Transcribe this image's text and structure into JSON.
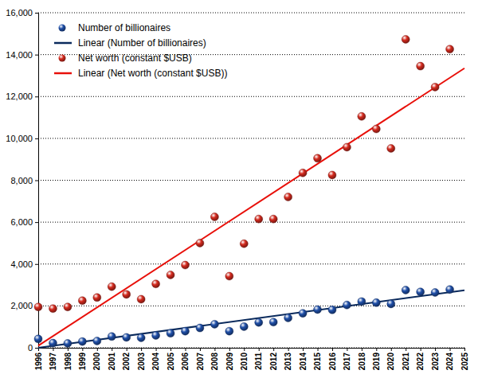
{
  "chart_data": {
    "type": "scatter",
    "x": [
      1996,
      1997,
      1998,
      1999,
      2000,
      2001,
      2002,
      2003,
      2004,
      2005,
      2006,
      2007,
      2008,
      2009,
      2010,
      2011,
      2012,
      2013,
      2014,
      2015,
      2016,
      2017,
      2018,
      2019,
      2020,
      2021,
      2022,
      2023,
      2024
    ],
    "series": [
      {
        "name": "Number of billionaires",
        "type": "scatter",
        "marker": "circle",
        "color": "#1f4fa8",
        "values": [
          423,
          224,
          209,
          298,
          322,
          538,
          497,
          476,
          587,
          691,
          793,
          946,
          1125,
          793,
          1011,
          1210,
          1226,
          1426,
          1645,
          1826,
          1810,
          2043,
          2208,
          2153,
          2095,
          2755,
          2668,
          2640,
          2781
        ]
      },
      {
        "name": "Linear (Number of billionaires)",
        "type": "line",
        "line_style": "solid",
        "color": "#0a2a5c",
        "x": [
          1996,
          2025
        ],
        "values": [
          0,
          2750
        ]
      },
      {
        "name": "Net worth (constant $USB)",
        "type": "scatter",
        "marker": "circle",
        "color": "#d42a1e",
        "values": [
          1950,
          1870,
          1950,
          2250,
          2400,
          2920,
          2550,
          2320,
          3050,
          3480,
          3950,
          5000,
          6250,
          3420,
          4970,
          6150,
          6150,
          7200,
          8350,
          9050,
          8250,
          9580,
          11050,
          10450,
          9520,
          14730,
          13450,
          12450,
          14260
        ]
      },
      {
        "name": "Linear (Net worth (constant $USB))",
        "type": "line",
        "line_style": "solid",
        "color": "#e8100a",
        "x": [
          1996,
          2025
        ],
        "values": [
          100,
          13350
        ]
      }
    ],
    "xlim": [
      1996,
      2025
    ],
    "xticks": [
      1996,
      1997,
      1998,
      1999,
      2000,
      2001,
      2002,
      2003,
      2004,
      2005,
      2006,
      2007,
      2008,
      2009,
      2010,
      2011,
      2012,
      2013,
      2014,
      2015,
      2016,
      2017,
      2018,
      2019,
      2020,
      2021,
      2022,
      2023,
      2024,
      2025
    ],
    "ylim": [
      0,
      16000
    ],
    "yticks": [
      0,
      {
        "value": 2000,
        "label": "2,000"
      },
      {
        "value": 4000,
        "label": "4,000"
      },
      {
        "value": 6000,
        "label": "6,000"
      },
      {
        "value": 8000,
        "label": "8,000"
      },
      {
        "value": 10000,
        "label": "10,000"
      },
      {
        "value": 12000,
        "label": "12,000"
      },
      {
        "value": 14000,
        "label": "14,000"
      },
      {
        "value": 16000,
        "label": "16,000"
      }
    ],
    "grid": true,
    "legend": "top-left"
  }
}
